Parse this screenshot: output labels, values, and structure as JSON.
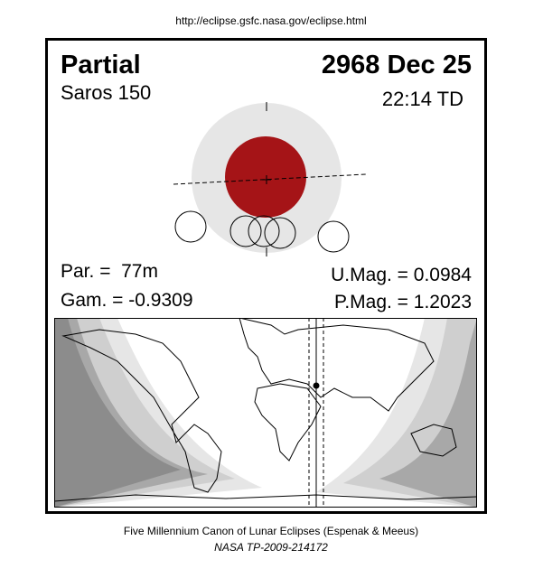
{
  "header": {
    "url": "http://eclipse.gsfc.nasa.gov/eclipse.html"
  },
  "eclipse": {
    "type": "Partial",
    "date": "2968 Dec 25",
    "saros": "Saros 150",
    "time": "22:14 TD",
    "parameters": {
      "duration": "Par. =  77m",
      "gamma": "Gam. = -0.9309",
      "umbral_magnitude": "U.Mag. = 0.0984",
      "penumbral_magnitude": "P.Mag. = 1.2023"
    }
  },
  "footer": {
    "line1": "Five Millennium Canon of Lunar Eclipses (Espenak & Meeus)",
    "line2": "NASA TP-2009-214172"
  }
}
